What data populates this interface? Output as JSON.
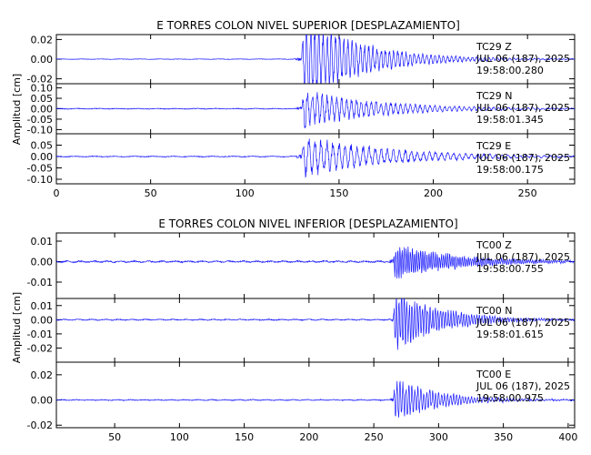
{
  "trace_color": "#1a1aff",
  "chart_data": [
    {
      "type": "line",
      "title": "E TORRES COLON NIVEL SUPERIOR [DESPLAZAMIENTO]",
      "ylabel": "Amplitud [cm]",
      "xlim": [
        0,
        275
      ],
      "x_ticks": [
        "0",
        "50",
        "100",
        "150",
        "200",
        "250"
      ],
      "x_tick_values": [
        0,
        50,
        100,
        150,
        200,
        250
      ],
      "onset": 130,
      "panels": [
        {
          "name": "Z",
          "station_line": "TC29    Z",
          "date_line": "JUL 06 (187), 2025",
          "time_line": "19:58:00.280",
          "ylim": [
            -0.025,
            0.025
          ],
          "y_ticks": [
            "0.02",
            "0.00",
            "-0.02"
          ],
          "y_tick_values": [
            0.02,
            0.0,
            -0.02
          ],
          "noise": 0.0002,
          "peak": 0.06,
          "pre": 0.003,
          "decay": 30,
          "period": 2.2
        },
        {
          "name": "N",
          "station_line": "TC29    N",
          "date_line": "JUL 06 (187), 2025",
          "time_line": "19:58:01.345",
          "ylim": [
            -0.12,
            0.12
          ],
          "y_ticks": [
            "0.10",
            "0.05",
            "0.00",
            "-0.05",
            "-0.10"
          ],
          "y_tick_values": [
            0.1,
            0.05,
            0.0,
            -0.05,
            -0.1
          ],
          "noise": 0.0015,
          "peak": 0.12,
          "pre": 0.01,
          "decay": 40,
          "period": 2.6
        },
        {
          "name": "E",
          "station_line": "TC29    E",
          "date_line": "JUL 06 (187), 2025",
          "time_line": "19:58:00.175",
          "ylim": [
            -0.12,
            0.1
          ],
          "y_ticks": [
            "0.05",
            "0.00",
            "-0.05",
            "-0.10"
          ],
          "y_tick_values": [
            0.05,
            0.0,
            -0.05,
            -0.1
          ],
          "noise": 0.0015,
          "peak": 0.12,
          "pre": 0.01,
          "decay": 45,
          "period": 3.2
        }
      ]
    },
    {
      "type": "line",
      "title": "E TORRES COLON NIVEL INFERIOR [DESPLAZAMIENTO]",
      "ylabel": "Amplitud [cm]",
      "xlim": [
        5,
        405
      ],
      "x_ticks": [
        "50",
        "100",
        "150",
        "200",
        "250",
        "300",
        "350",
        "400"
      ],
      "x_tick_values": [
        50,
        100,
        150,
        200,
        250,
        300,
        350,
        400
      ],
      "onset": 265,
      "panels": [
        {
          "name": "Z",
          "station_line": "TC00    Z",
          "date_line": "JUL 06 (187), 2025",
          "time_line": "19:58:00.755",
          "ylim": [
            -0.018,
            0.014
          ],
          "y_ticks": [
            "0.01",
            "0.00",
            "-0.01"
          ],
          "y_tick_values": [
            0.01,
            0.0,
            -0.01
          ],
          "noise": 0.0003,
          "peak": 0.012,
          "pre": 0.0015,
          "decay": 45,
          "period": 1.6
        },
        {
          "name": "N",
          "station_line": "TC00    N",
          "date_line": "JUL 06 (187), 2025",
          "time_line": "19:58:01.615",
          "ylim": [
            -0.03,
            0.015
          ],
          "y_ticks": [
            "0.01",
            "0.00",
            "-0.01",
            "-0.02"
          ],
          "y_tick_values": [
            0.01,
            0.0,
            -0.01,
            -0.02
          ],
          "noise": 0.0003,
          "peak": 0.03,
          "pre": 0.002,
          "decay": 35,
          "period": 2.0
        },
        {
          "name": "E",
          "station_line": "TC00    E",
          "date_line": "JUL 06 (187), 2025",
          "time_line": "19:58:00.975",
          "ylim": [
            -0.022,
            0.03
          ],
          "y_ticks": [
            "0.02",
            "0.00",
            "-0.02"
          ],
          "y_tick_values": [
            0.02,
            0.0,
            -0.02
          ],
          "noise": 0.0003,
          "peak": 0.022,
          "pre": 0.0015,
          "decay": 35,
          "period": 2.3
        }
      ]
    }
  ]
}
